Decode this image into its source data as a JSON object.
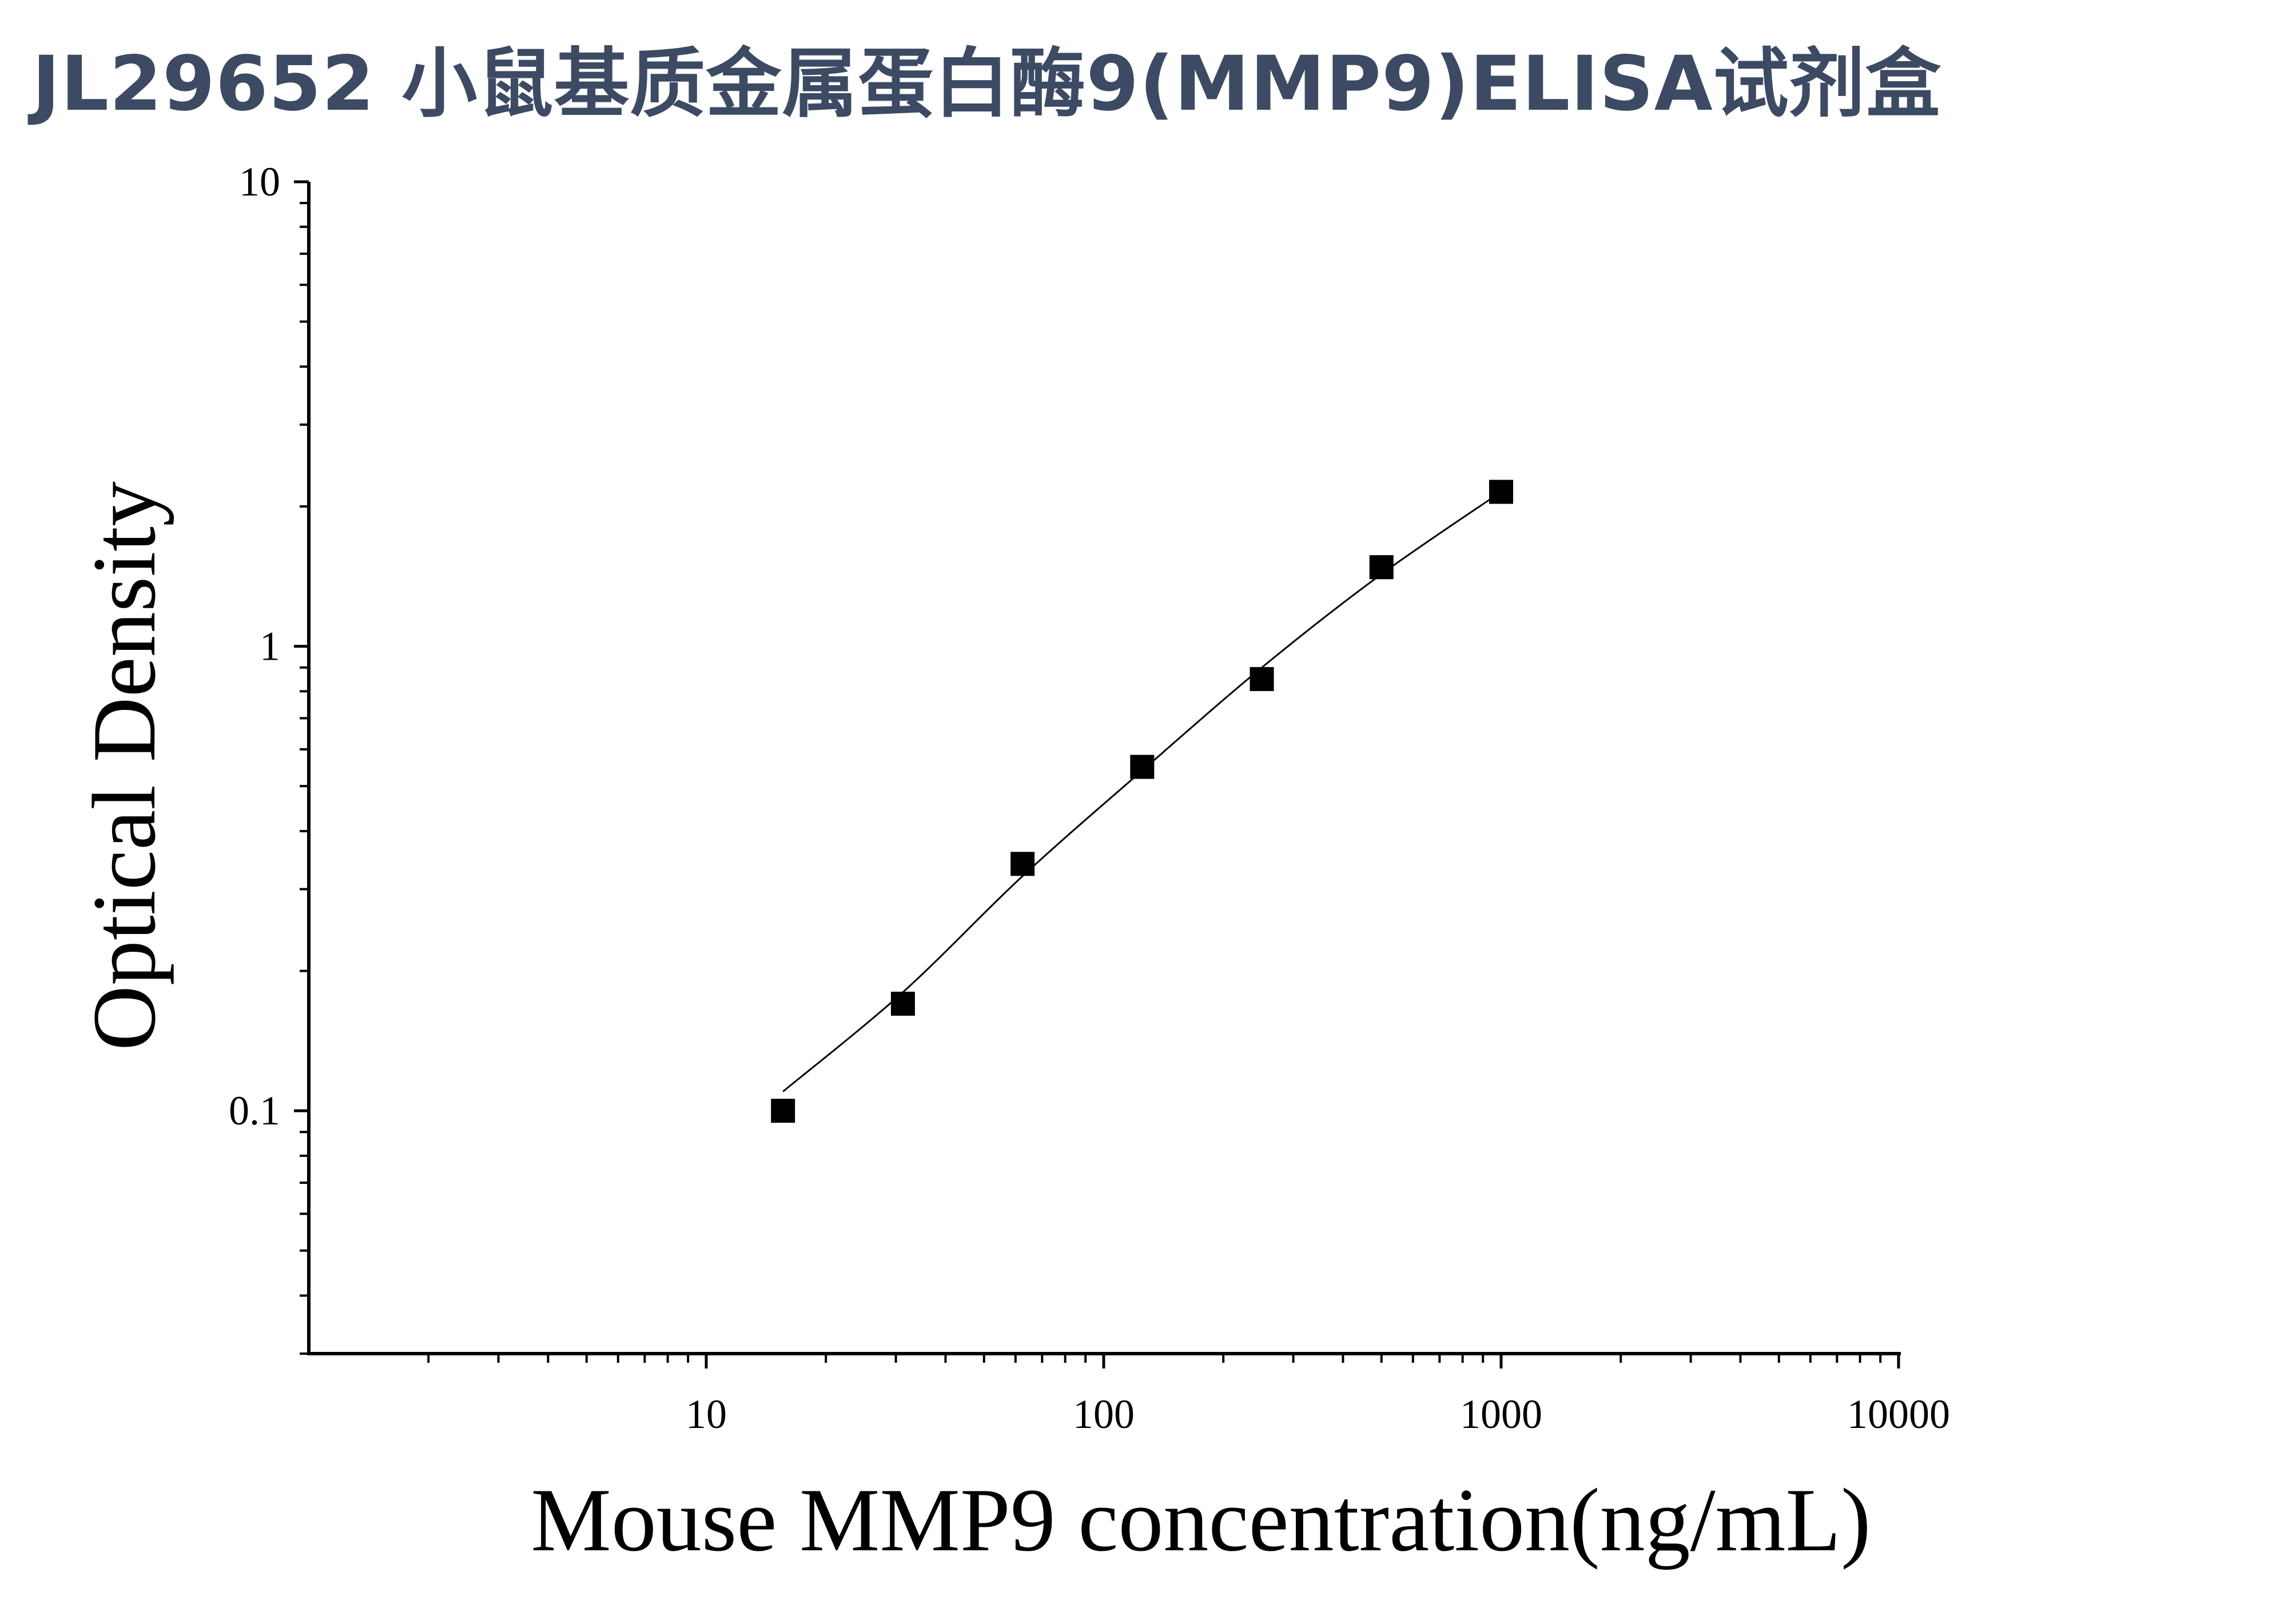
{
  "page": {
    "title": "JL29652 小鼠基质金属蛋白酶9(MMP9)ELISA试剂盒"
  },
  "colors": {
    "title": "#3d4a63",
    "axis": "#000000",
    "marker": "#000000",
    "curve": "#000000",
    "background": "#ffffff"
  },
  "chart_data": {
    "type": "scatter",
    "title": "",
    "xlabel": "Mouse MMP9 concentration(ng/mL)",
    "ylabel": "Optical Density",
    "x_scale": "log",
    "y_scale": "log",
    "xlim": [
      1,
      10000
    ],
    "ylim": [
      0.03,
      10
    ],
    "x_tick_labels": [
      "10",
      "100",
      "1000",
      "10000"
    ],
    "y_tick_labels": [
      "0.1",
      "1",
      "10"
    ],
    "grid": false,
    "legend": "none",
    "marker": "square",
    "series": [
      {
        "x": [
          15.6,
          31.25,
          62.5,
          125,
          250,
          500,
          1000
        ],
        "y": [
          0.1,
          0.17,
          0.34,
          0.55,
          0.85,
          1.48,
          2.15
        ]
      }
    ],
    "fit_curve": {
      "x": [
        15.6,
        31.25,
        62.5,
        125,
        250,
        500,
        1000
      ],
      "y": [
        0.11,
        0.18,
        0.32,
        0.54,
        0.9,
        1.43,
        2.15
      ]
    }
  }
}
